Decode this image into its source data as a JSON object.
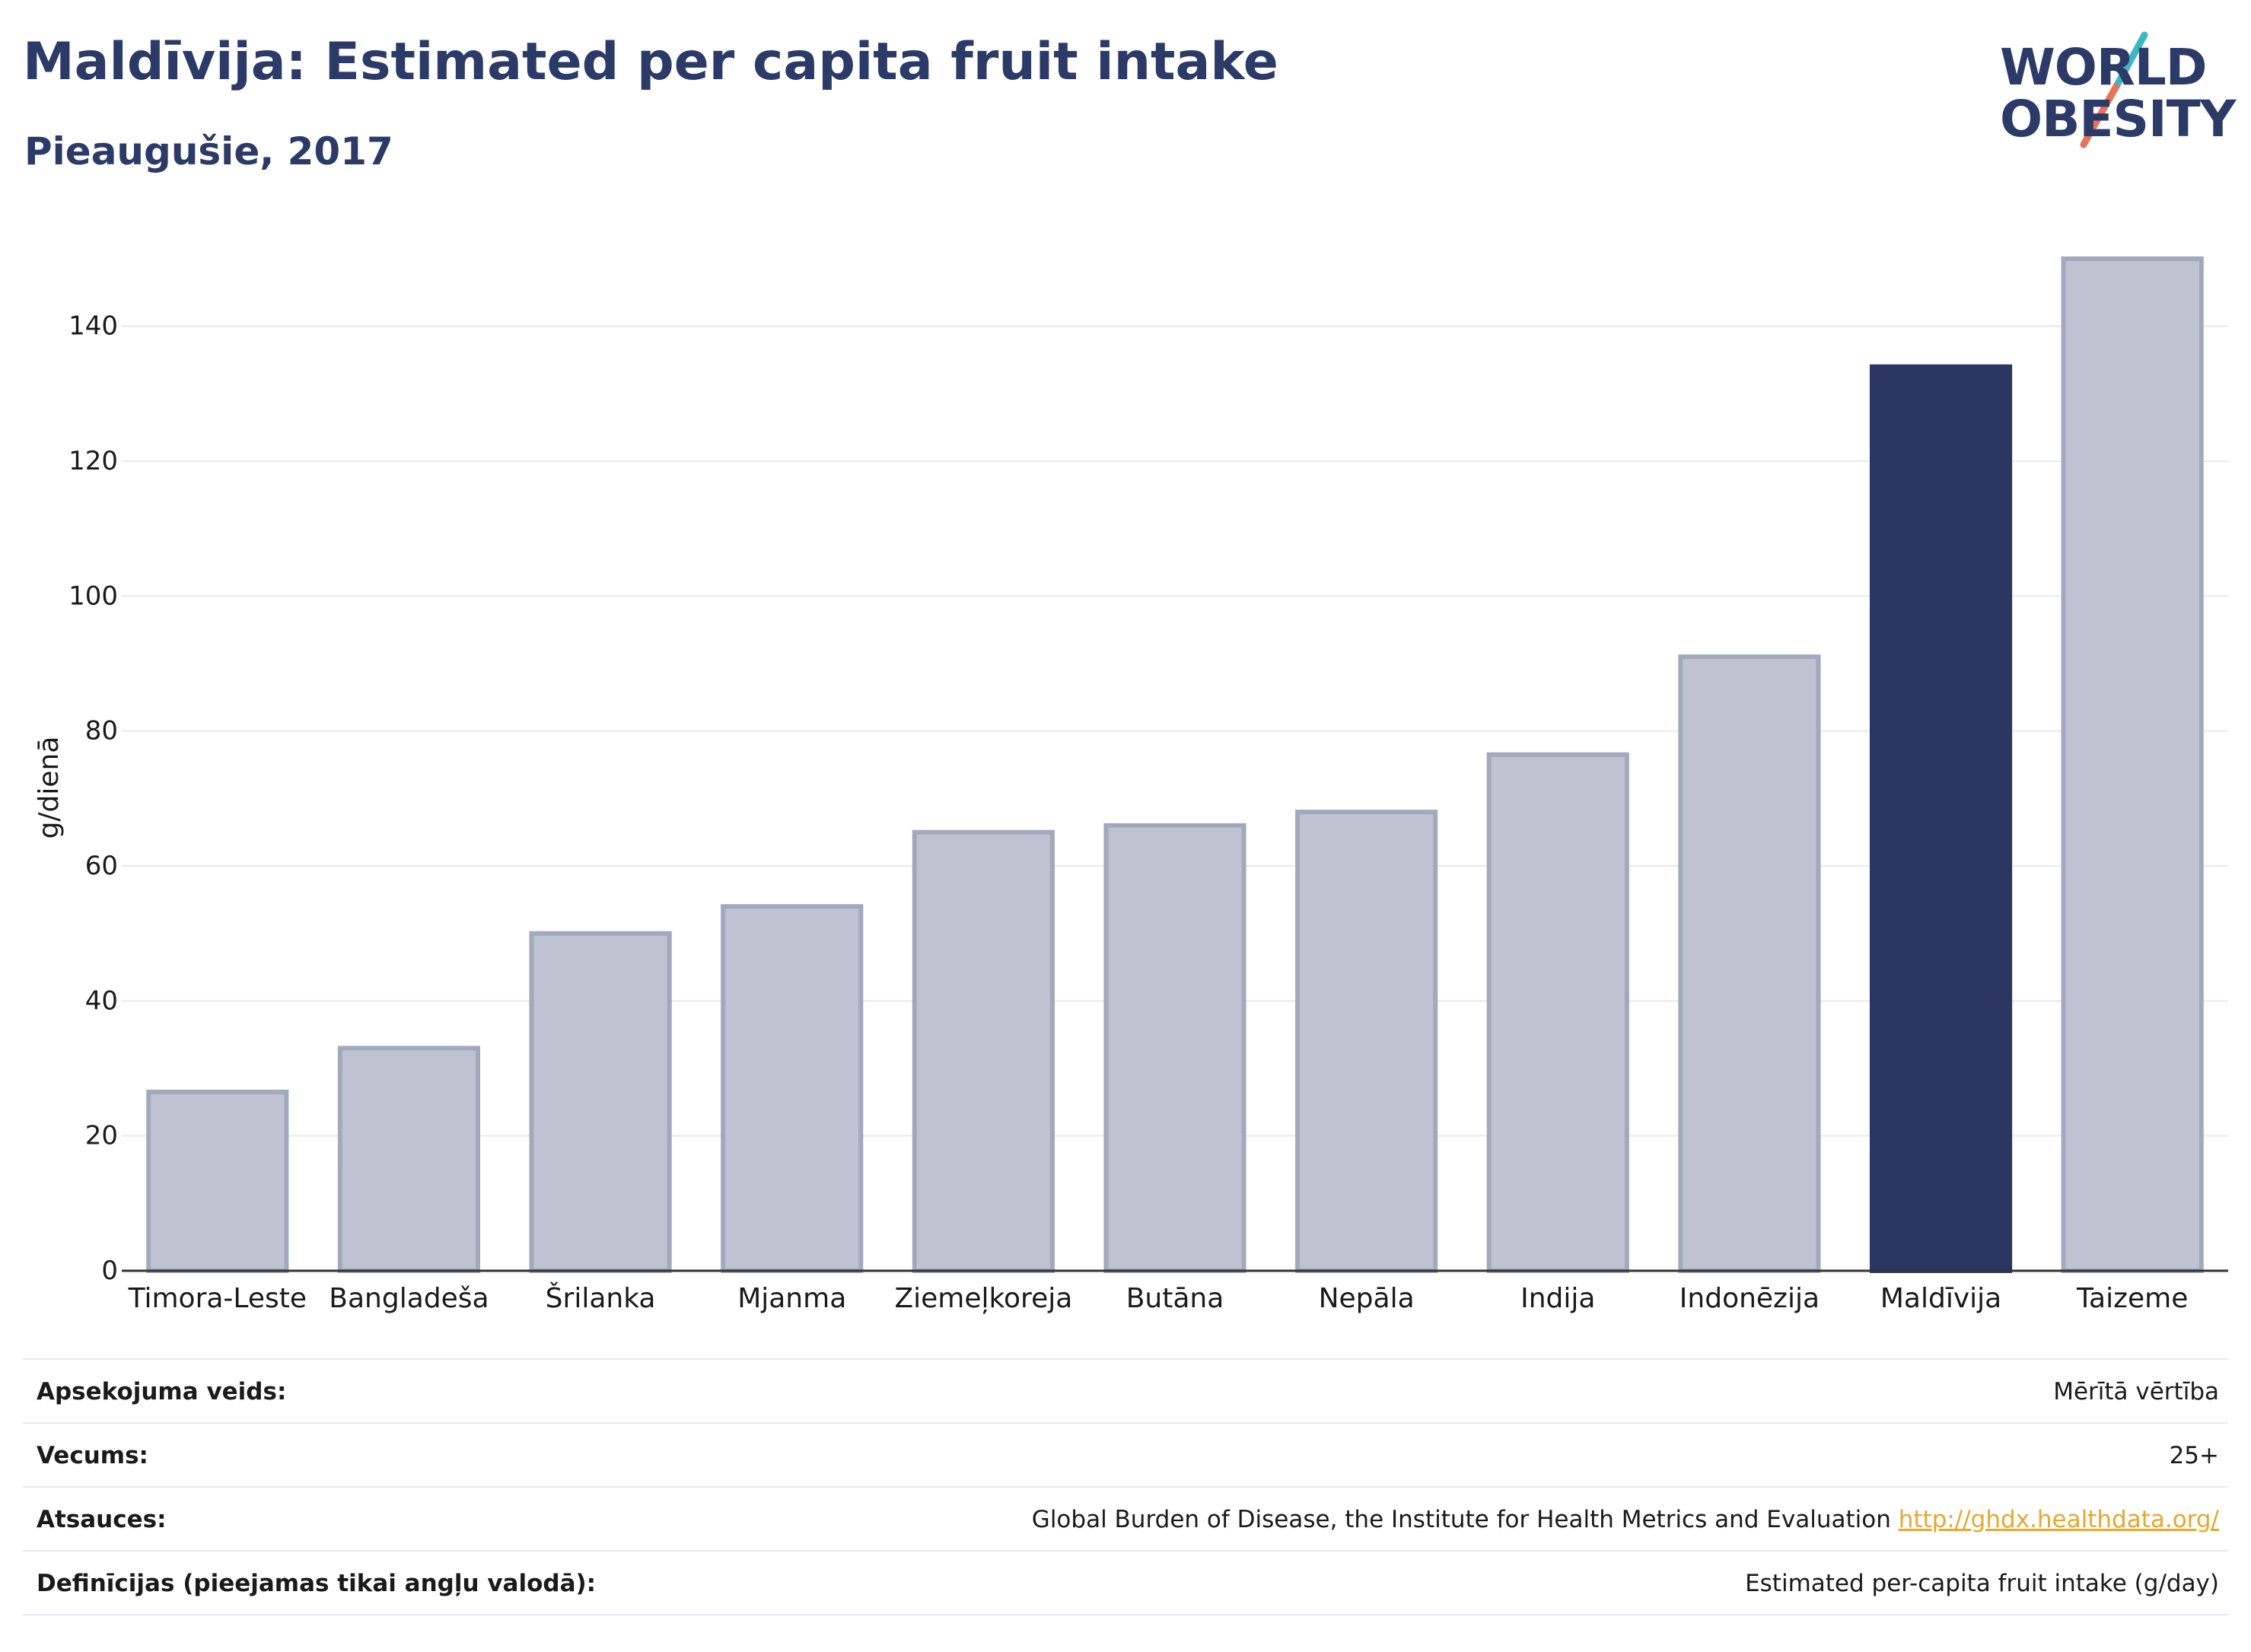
{
  "header": {
    "title": "Maldīvija: Estimated per capita fruit intake",
    "subtitle": "Pieaugušie, 2017"
  },
  "logo": {
    "line1": "WORLD",
    "line2": "OBESITY",
    "text_color": "#2b3a67",
    "slash_top": "#3cb8c4",
    "slash_bottom": "#e8735a"
  },
  "chart_data": {
    "type": "bar",
    "title": "Maldīvija: Estimated per capita fruit intake",
    "subtitle": "Pieaugušie, 2017",
    "ylabel": "g/dienā",
    "xlabel": "",
    "ylim": [
      0,
      150
    ],
    "yticks": [
      0,
      20,
      40,
      60,
      80,
      100,
      120,
      140
    ],
    "grid": true,
    "categories": [
      "Timora-Leste",
      "Bangladeša",
      "Šrilanka",
      "Mjanma",
      "Ziemeļkoreja",
      "Butāna",
      "Nepāla",
      "Indija",
      "Indonēzija",
      "Maldīvija",
      "Taizeme"
    ],
    "values": [
      26.5,
      33,
      50,
      54,
      65,
      66,
      68,
      76.5,
      91,
      134,
      150
    ],
    "highlight": "Maldīvija",
    "colors": {
      "default_fill": "#bfc3d1",
      "default_stroke": "#a3a9bd",
      "highlight_fill": "#2b3561"
    }
  },
  "info": [
    {
      "key": "Apsekojuma veids:",
      "value": "Mērītā vērtība"
    },
    {
      "key": "Vecums:",
      "value": "25+"
    },
    {
      "key": "Atsauces:",
      "value": "Global Burden of Disease, the Institute for Health Metrics and Evaluation",
      "link": "http://ghdx.healthdata.org/"
    },
    {
      "key": "Definīcijas (pieejamas tikai angļu valodā):",
      "value": "Estimated per-capita fruit intake (g/day)"
    }
  ]
}
